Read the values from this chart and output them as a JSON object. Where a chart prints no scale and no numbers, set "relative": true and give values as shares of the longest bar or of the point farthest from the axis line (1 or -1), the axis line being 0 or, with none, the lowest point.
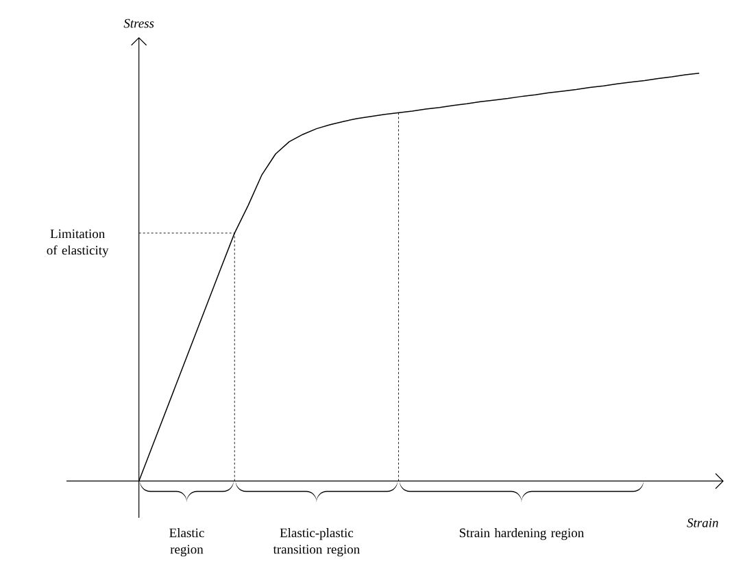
{
  "chart_data": {
    "type": "line",
    "relative": true,
    "xlabel": "Strain",
    "ylabel": "Stress",
    "color": "#000000",
    "categories": [
      null,
      null,
      null,
      null,
      null,
      null,
      null,
      null,
      null,
      null,
      null,
      null,
      null,
      null,
      null,
      null,
      null,
      null,
      null,
      null,
      null,
      null,
      null,
      null,
      null,
      null,
      null,
      null,
      null,
      null,
      null,
      null,
      null,
      null,
      null,
      null,
      null,
      null,
      null,
      null,
      null,
      null
    ],
    "values": [
      0,
      0.087,
      0.174,
      0.261,
      0.348,
      0.435,
      0.522,
      0.608,
      0.676,
      0.751,
      0.802,
      0.832,
      0.85,
      0.864,
      0.874,
      0.882,
      0.889,
      0.894,
      0.899,
      0.903,
      0.907,
      0.912,
      0.916,
      0.921,
      0.925,
      0.93,
      0.934,
      0.938,
      0.943,
      0.947,
      0.952,
      0.956,
      0.96,
      0.965,
      0.969,
      0.974,
      0.978,
      0.982,
      0.987,
      0.991,
      0.996,
      1.0
    ],
    "ref_lines": [
      {
        "axis": "y",
        "value": 0.608,
        "label": "Limitation of elasticity",
        "line_style": "dashed"
      }
    ],
    "annotations": [
      "Elastic region",
      "Elastic-plastic transition region",
      "Strain hardening region"
    ]
  }
}
